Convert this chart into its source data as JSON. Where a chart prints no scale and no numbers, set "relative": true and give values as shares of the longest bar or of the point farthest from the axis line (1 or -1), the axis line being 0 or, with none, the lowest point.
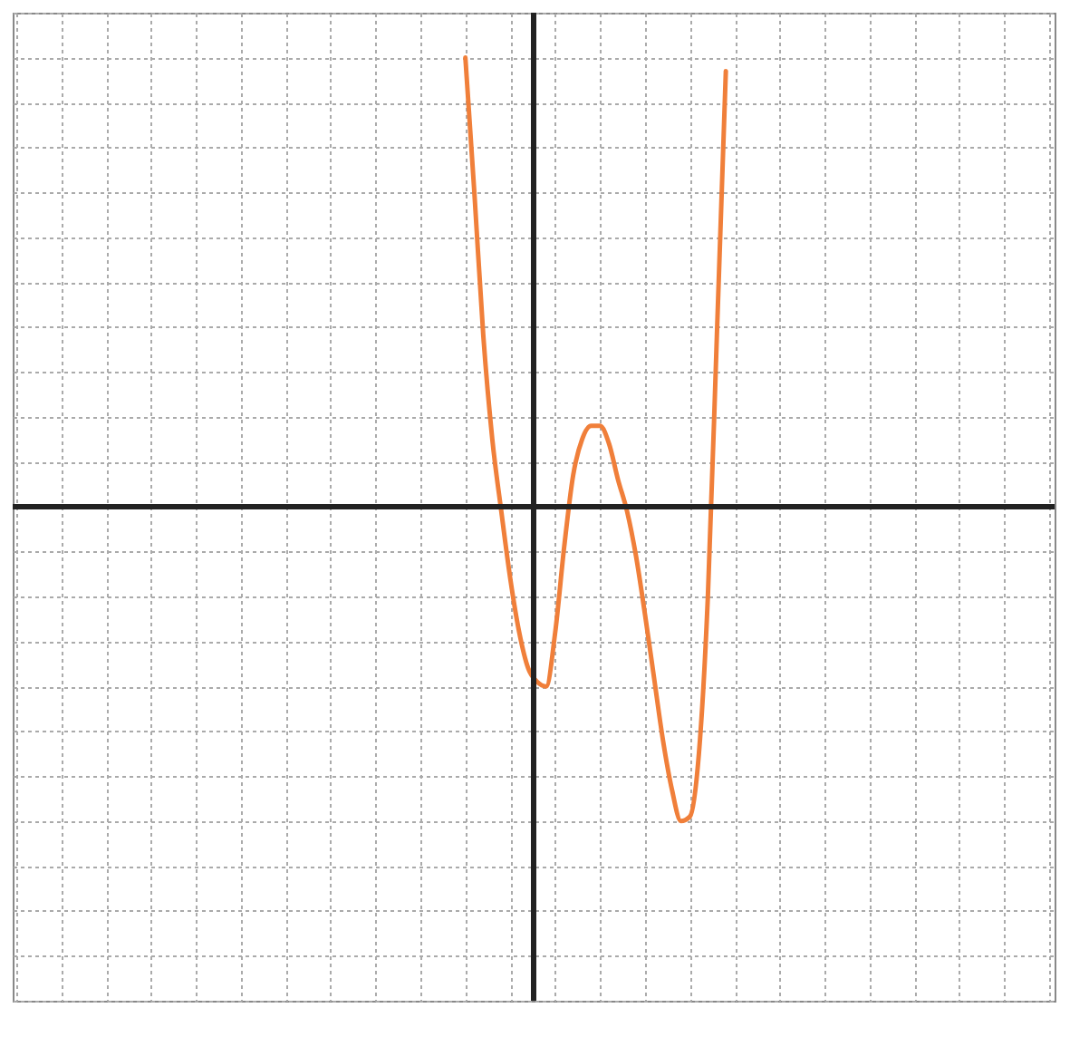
{
  "chart_data": {
    "type": "line",
    "relative": true,
    "grid": true,
    "marker": "none",
    "line_style": "solid",
    "categories": [
      null,
      null,
      null,
      null,
      null,
      null,
      null,
      null,
      null,
      null,
      null,
      null,
      null,
      null,
      null,
      null,
      null,
      null,
      null,
      null,
      null,
      null,
      null,
      null,
      null,
      null,
      null,
      null,
      null,
      null
    ],
    "series": [
      {
        "color": "#f07f3a",
        "values": [
          1.0,
          0.7,
          0.38,
          0.15,
          -0.01,
          -0.16,
          -0.28,
          -0.36,
          -0.39,
          -0.4,
          -0.28,
          -0.09,
          0.07,
          0.15,
          0.18,
          0.18,
          0.14,
          0.06,
          -0.01,
          -0.11,
          -0.24,
          -0.38,
          -0.52,
          -0.63,
          -0.7,
          -0.69,
          -0.55,
          -0.2,
          0.38,
          0.97
        ]
      }
    ]
  }
}
